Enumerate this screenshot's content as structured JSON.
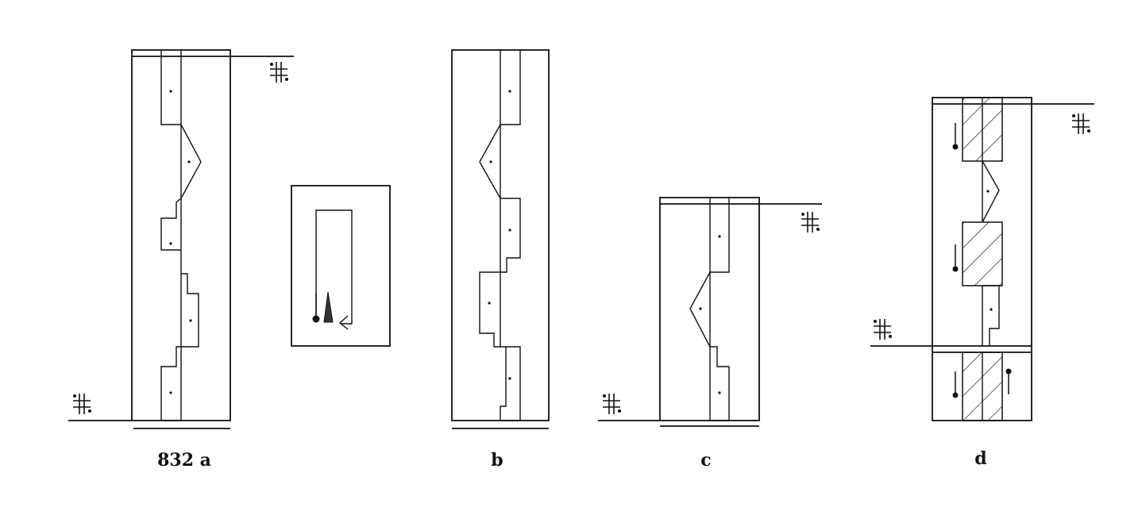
{
  "labels": {
    "a": "832 a",
    "b": "b",
    "c": "c",
    "d": "d"
  }
}
